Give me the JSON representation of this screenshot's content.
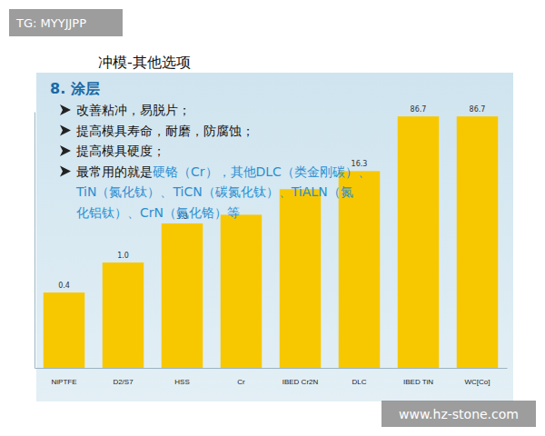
{
  "chart_data": {
    "type": "bar",
    "categories": [
      "NiPTFE",
      "D2/S7",
      "HSS",
      "Cr",
      "IBED Cr2N",
      "DLC",
      "IBED TiN",
      "WC[Co]"
    ],
    "values": [
      0.4,
      1.0,
      3.3,
      4.3,
      9.4,
      16.3,
      86.7,
      86.7
    ],
    "value_labels": [
      "0.4",
      "1.0",
      "3.3",
      null,
      null,
      "16.3",
      "86.7",
      "86.7"
    ],
    "color": "#f7c800",
    "ylim": [
      0.04,
      100
    ],
    "log": "y",
    "data_labels": true,
    "tick_labels": "x"
  },
  "page": {
    "watermark": "TG: MYYJJPP",
    "title": "冲模-其他选项",
    "heading": "8. 涂层",
    "bullets": [
      "改善粘冲，易脱片；",
      "提高模具寿命，耐磨，防腐蚀；",
      "提高模具硬度；"
    ],
    "bullet_last": {
      "lead": "最常用的就是",
      "lines": [
        "硬铬（Cr），其他DLC（类金刚碳）、",
        "TiN（氮化钛）、TiCN（碳氮化钛）、TiALN（氮",
        "化铝钛）、CrN（氮化铬）等"
      ]
    },
    "site": "www.hz-stone.com"
  }
}
